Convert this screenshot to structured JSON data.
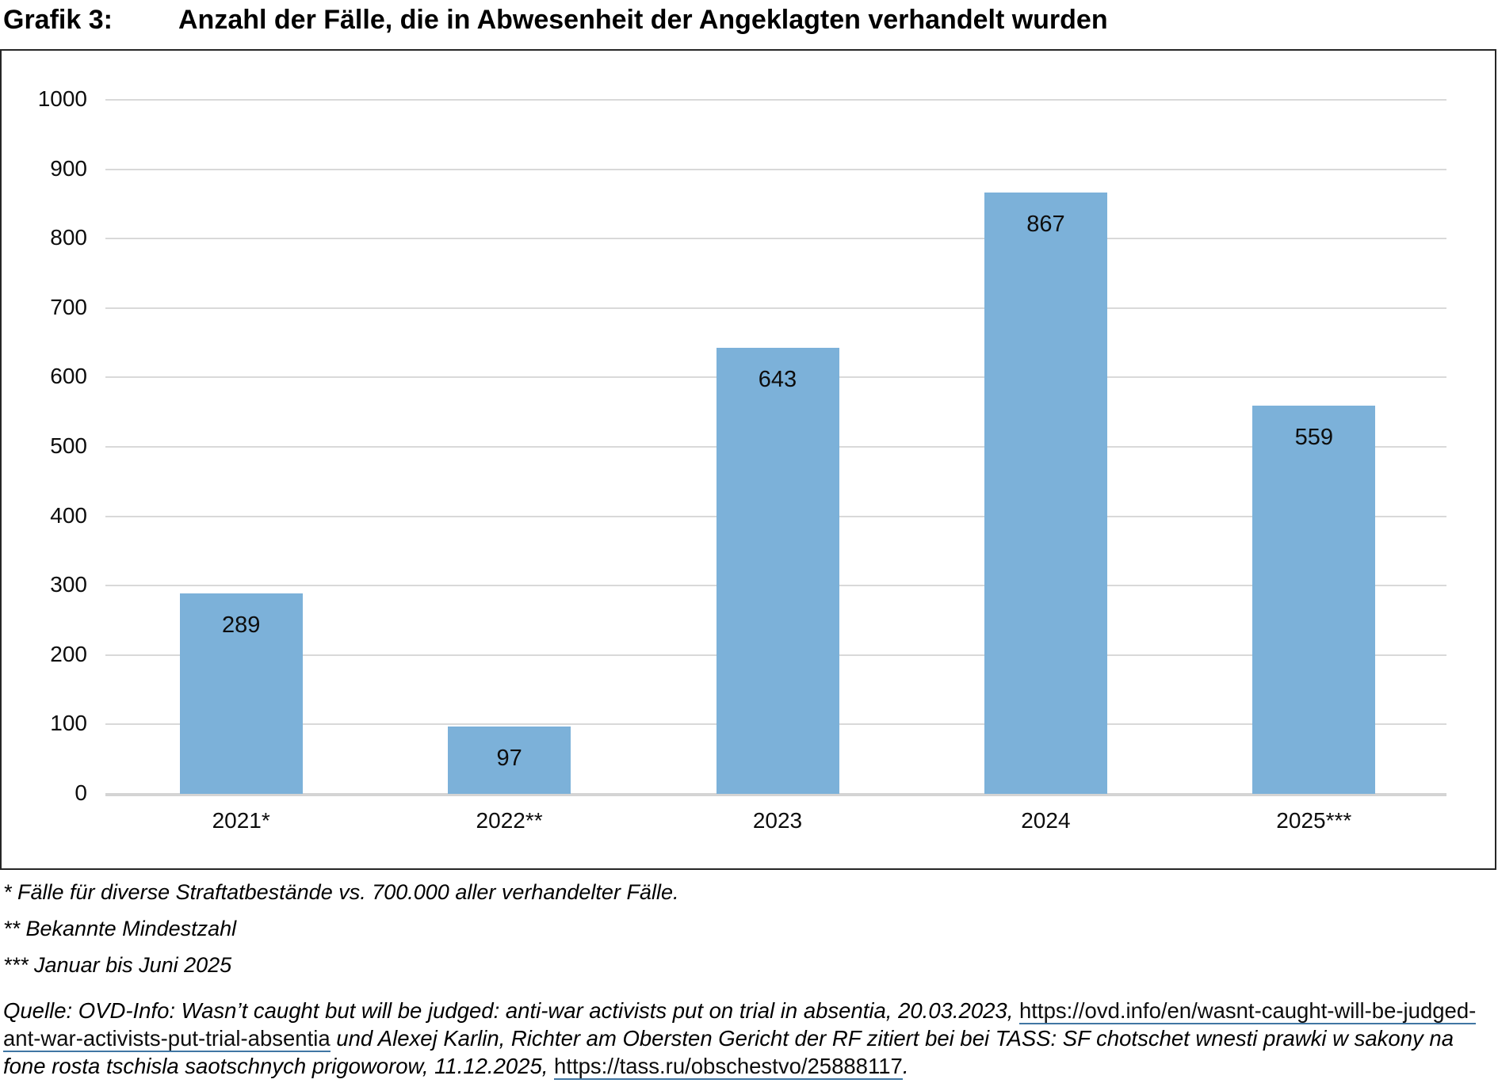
{
  "title": {
    "label": "Grafik 3:",
    "text": "Anzahl der Fälle, die in Abwesenheit der Angeklagten verhandelt wurden"
  },
  "chart_data": {
    "type": "bar",
    "categories": [
      "2021*",
      "2022**",
      "2023",
      "2024",
      "2025***"
    ],
    "values": [
      289,
      97,
      643,
      867,
      559
    ],
    "title": "Anzahl der Fälle, die in Abwesenheit der Angeklagten verhandelt wurden",
    "xlabel": "",
    "ylabel": "",
    "ylim": [
      0,
      1000
    ],
    "ytick_step": 100,
    "grid": true,
    "legend": "none",
    "bar_color": "#7cb1d9",
    "value_labels_position": "inside-end"
  },
  "footnotes": [
    "* Fälle für diverse Straftatbestände vs. 700.000 aller verhandelter Fälle.",
    "** Bekannte Mindestzahl",
    "*** Januar bis Juni 2025"
  ],
  "source": {
    "segments": [
      {
        "text": "Quelle: OVD-Info: Wasn’t caught but will be judged: anti-war activists put on trial in absentia, 20.03.2023, ",
        "style": "italic"
      },
      {
        "text": "https://ovd.info/en/wasnt-caught-will-be-judged-ant-war-activists-put-trial-absentia",
        "style": "link"
      },
      {
        "text": " und Alexej Karlin, Richter am Obersten Gericht der RF zitiert bei bei TASS: SF chotschet wnesti prawki w sakony na fone rosta tschisla saotschnych prigoworow, 11.12.2025, ",
        "style": "italic"
      },
      {
        "text": "https://tass.ru/obschestvo/25888117",
        "style": "link"
      },
      {
        "text": ".",
        "style": "italic"
      }
    ]
  }
}
